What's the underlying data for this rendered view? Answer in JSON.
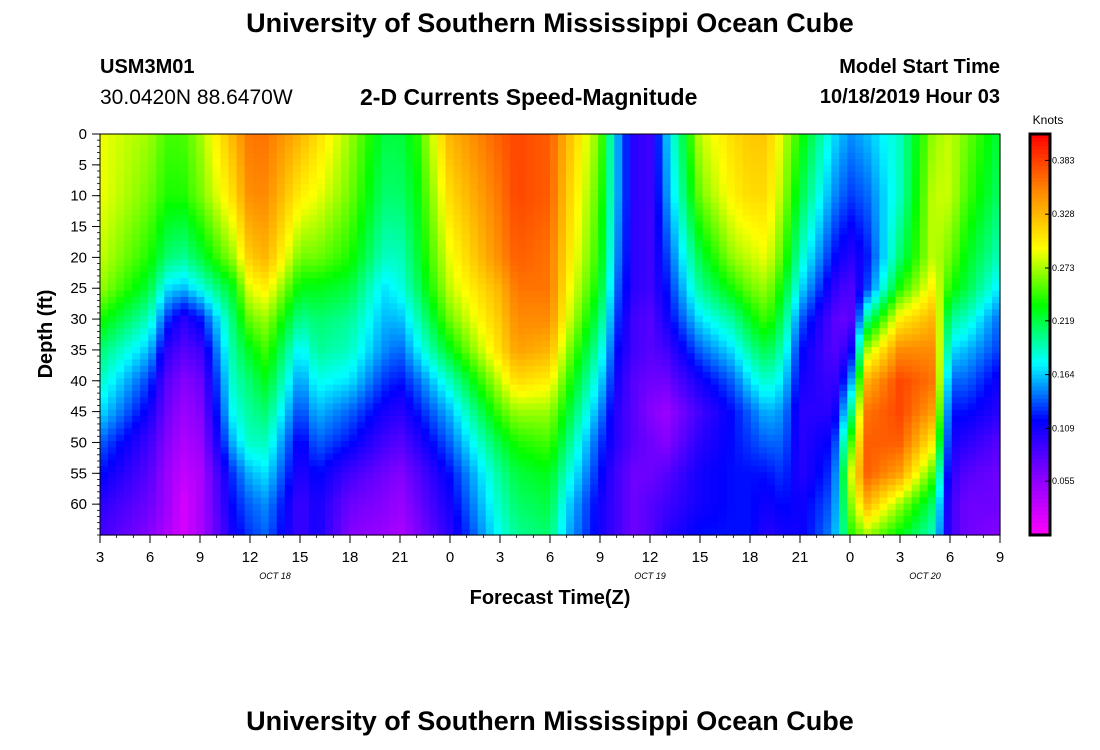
{
  "header": {
    "title": "University of Southern Mississippi Ocean Cube",
    "station_id": "USM3M01",
    "station_coords": "30.0420N 88.6470W",
    "chart_title": "2-D Currents Speed-Magnitude",
    "model_start_label": "Model Start Time",
    "model_start_time": "10/18/2019 Hour 03"
  },
  "footer": {
    "title": "University of Southern Mississippi Ocean Cube"
  },
  "chart_data": {
    "type": "heatmap",
    "title": "2-D Currents Speed-Magnitude",
    "xlabel": "Forecast Time(Z)",
    "ylabel": "Depth (ft)",
    "x_tick_labels": [
      "3",
      "6",
      "9",
      "12",
      "15",
      "18",
      "21",
      "0",
      "3",
      "6",
      "9",
      "12",
      "15",
      "18",
      "21",
      "0",
      "3",
      "6",
      "9"
    ],
    "x_range_hours": [
      0,
      54
    ],
    "date_labels": [
      {
        "label": "OCT 18",
        "tick_index": 3.5
      },
      {
        "label": "OCT 19",
        "tick_index": 11
      },
      {
        "label": "OCT 20",
        "tick_index": 16.5
      }
    ],
    "y_tick_labels": [
      "0",
      "5",
      "10",
      "15",
      "20",
      "25",
      "30",
      "35",
      "40",
      "45",
      "50",
      "55",
      "60"
    ],
    "ylim": [
      0,
      65
    ],
    "y_inverted": true,
    "colorbar": {
      "unit": "Knots",
      "ticks": [
        "0.383",
        "0.328",
        "0.273",
        "0.219",
        "0.164",
        "0.109",
        "0.055"
      ],
      "range": [
        0.0,
        0.41
      ]
    },
    "colormap": [
      "#ff00ff",
      "#8800ff",
      "#0000ff",
      "#00ffff",
      "#00ff00",
      "#ffff00",
      "#ff8800",
      "#ff0000"
    ],
    "depths_ft": [
      0,
      10,
      20,
      25,
      30,
      35,
      40,
      45,
      50,
      55,
      60,
      65
    ],
    "hours": [
      0,
      3,
      4,
      5,
      6,
      8,
      9,
      10,
      12,
      13,
      15,
      17,
      18,
      19,
      21,
      24,
      25,
      27,
      28,
      30,
      31,
      32,
      33,
      34,
      36,
      38,
      39,
      40,
      41,
      42,
      44,
      45,
      46,
      48,
      50,
      51,
      52,
      54
    ],
    "speed_knots": [
      [
        0.29,
        0.29,
        0.28,
        0.27,
        0.24,
        0.21,
        0.19,
        0.17,
        0.14,
        0.12,
        0.1,
        0.09
      ],
      [
        0.27,
        0.26,
        0.24,
        0.22,
        0.19,
        0.16,
        0.13,
        0.11,
        0.09,
        0.08,
        0.07,
        0.06
      ],
      [
        0.25,
        0.24,
        0.21,
        0.17,
        0.13,
        0.1,
        0.08,
        0.07,
        0.06,
        0.05,
        0.05,
        0.04
      ],
      [
        0.25,
        0.24,
        0.2,
        0.16,
        0.1,
        0.08,
        0.06,
        0.05,
        0.04,
        0.03,
        0.02,
        0.02
      ],
      [
        0.27,
        0.26,
        0.22,
        0.18,
        0.12,
        0.09,
        0.07,
        0.06,
        0.05,
        0.04,
        0.04,
        0.04
      ],
      [
        0.33,
        0.31,
        0.27,
        0.23,
        0.21,
        0.2,
        0.19,
        0.18,
        0.16,
        0.13,
        0.12,
        0.11
      ],
      [
        0.36,
        0.35,
        0.32,
        0.29,
        0.26,
        0.23,
        0.21,
        0.2,
        0.19,
        0.16,
        0.14,
        0.13
      ],
      [
        0.36,
        0.35,
        0.33,
        0.3,
        0.27,
        0.25,
        0.23,
        0.21,
        0.19,
        0.17,
        0.15,
        0.14
      ],
      [
        0.33,
        0.3,
        0.26,
        0.23,
        0.2,
        0.17,
        0.15,
        0.13,
        0.11,
        0.1,
        0.09,
        0.09
      ],
      [
        0.31,
        0.29,
        0.26,
        0.23,
        0.21,
        0.2,
        0.18,
        0.16,
        0.14,
        0.12,
        0.11,
        0.11
      ],
      [
        0.27,
        0.26,
        0.24,
        0.22,
        0.2,
        0.19,
        0.17,
        0.14,
        0.12,
        0.09,
        0.07,
        0.06
      ],
      [
        0.22,
        0.21,
        0.19,
        0.17,
        0.16,
        0.15,
        0.13,
        0.11,
        0.09,
        0.07,
        0.06,
        0.05
      ],
      [
        0.22,
        0.21,
        0.19,
        0.18,
        0.16,
        0.14,
        0.12,
        0.1,
        0.08,
        0.06,
        0.05,
        0.04
      ],
      [
        0.24,
        0.23,
        0.22,
        0.21,
        0.19,
        0.17,
        0.14,
        0.12,
        0.1,
        0.08,
        0.07,
        0.06
      ],
      [
        0.33,
        0.31,
        0.29,
        0.28,
        0.26,
        0.23,
        0.19,
        0.16,
        0.14,
        0.12,
        0.11,
        0.1
      ],
      [
        0.37,
        0.36,
        0.35,
        0.33,
        0.32,
        0.31,
        0.28,
        0.25,
        0.22,
        0.2,
        0.19,
        0.18
      ],
      [
        0.38,
        0.38,
        0.37,
        0.36,
        0.35,
        0.34,
        0.31,
        0.27,
        0.24,
        0.22,
        0.21,
        0.2
      ],
      [
        0.37,
        0.37,
        0.36,
        0.36,
        0.35,
        0.33,
        0.3,
        0.27,
        0.25,
        0.23,
        0.22,
        0.21
      ],
      [
        0.33,
        0.32,
        0.31,
        0.3,
        0.29,
        0.27,
        0.25,
        0.23,
        0.21,
        0.19,
        0.17,
        0.16
      ],
      [
        0.26,
        0.25,
        0.24,
        0.23,
        0.21,
        0.19,
        0.17,
        0.15,
        0.13,
        0.12,
        0.11,
        0.11
      ],
      [
        0.16,
        0.16,
        0.15,
        0.14,
        0.13,
        0.12,
        0.11,
        0.1,
        0.1,
        0.09,
        0.09,
        0.09
      ],
      [
        0.1,
        0.1,
        0.1,
        0.1,
        0.09,
        0.09,
        0.08,
        0.08,
        0.08,
        0.07,
        0.07,
        0.07
      ],
      [
        0.09,
        0.09,
        0.09,
        0.09,
        0.08,
        0.08,
        0.07,
        0.06,
        0.07,
        0.07,
        0.08,
        0.08
      ],
      [
        0.16,
        0.15,
        0.13,
        0.12,
        0.11,
        0.09,
        0.07,
        0.05,
        0.06,
        0.08,
        0.09,
        0.1
      ],
      [
        0.28,
        0.26,
        0.22,
        0.2,
        0.17,
        0.14,
        0.11,
        0.09,
        0.1,
        0.11,
        0.11,
        0.12
      ],
      [
        0.31,
        0.3,
        0.27,
        0.24,
        0.2,
        0.17,
        0.14,
        0.12,
        0.12,
        0.12,
        0.12,
        0.12
      ],
      [
        0.32,
        0.31,
        0.28,
        0.26,
        0.23,
        0.2,
        0.17,
        0.14,
        0.13,
        0.12,
        0.12,
        0.12
      ],
      [
        0.32,
        0.31,
        0.29,
        0.27,
        0.25,
        0.22,
        0.19,
        0.16,
        0.14,
        0.12,
        0.11,
        0.1
      ],
      [
        0.28,
        0.27,
        0.25,
        0.23,
        0.21,
        0.19,
        0.17,
        0.15,
        0.14,
        0.13,
        0.12,
        0.11
      ],
      [
        0.24,
        0.22,
        0.19,
        0.17,
        0.14,
        0.12,
        0.11,
        0.1,
        0.1,
        0.1,
        0.11,
        0.11
      ],
      [
        0.17,
        0.15,
        0.12,
        0.1,
        0.08,
        0.08,
        0.09,
        0.1,
        0.12,
        0.13,
        0.14,
        0.15
      ],
      [
        0.15,
        0.13,
        0.1,
        0.08,
        0.07,
        0.1,
        0.14,
        0.19,
        0.24,
        0.28,
        0.26,
        0.24
      ],
      [
        0.16,
        0.14,
        0.12,
        0.13,
        0.2,
        0.27,
        0.33,
        0.36,
        0.37,
        0.37,
        0.33,
        0.27
      ],
      [
        0.19,
        0.19,
        0.21,
        0.24,
        0.3,
        0.35,
        0.38,
        0.38,
        0.37,
        0.34,
        0.27,
        0.23
      ],
      [
        0.27,
        0.28,
        0.28,
        0.3,
        0.33,
        0.35,
        0.36,
        0.34,
        0.3,
        0.25,
        0.21,
        0.19
      ],
      [
        0.28,
        0.28,
        0.26,
        0.24,
        0.2,
        0.17,
        0.14,
        0.12,
        0.11,
        0.1,
        0.09,
        0.09
      ],
      [
        0.26,
        0.25,
        0.23,
        0.22,
        0.19,
        0.16,
        0.14,
        0.12,
        0.1,
        0.08,
        0.07,
        0.07
      ],
      [
        0.22,
        0.21,
        0.19,
        0.17,
        0.14,
        0.13,
        0.11,
        0.1,
        0.08,
        0.07,
        0.07,
        0.06
      ]
    ]
  }
}
